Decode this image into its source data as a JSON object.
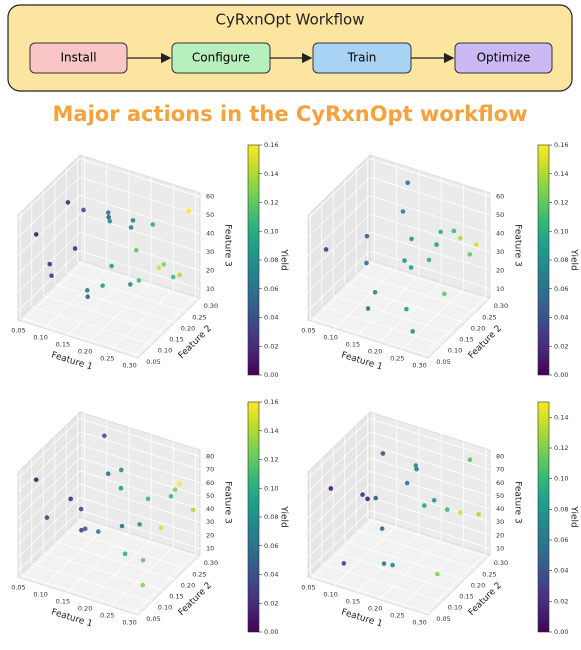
{
  "workflow": {
    "title": "CyRxnOpt Workflow",
    "steps": [
      "Install",
      "Configure",
      "Train",
      "Optimize"
    ]
  },
  "heading": "Major actions in the CyRxnOpt workflow",
  "chart_data": [
    {
      "type": "scatter3d",
      "xlabel": "Feature 1",
      "ylabel": "Feature 2",
      "zlabel": "Feature 3",
      "colorbar_label": "Yield",
      "xlim": [
        0.04,
        0.31
      ],
      "ylim": [
        0.04,
        0.31
      ],
      "zlim": [
        5,
        62
      ],
      "clim": [
        0,
        0.16
      ],
      "xticks": [
        0.05,
        {
          "value": 0.1,
          "label": "0.10"
        },
        0.15,
        {
          "value": 0.2,
          "label": "0.20"
        },
        0.25,
        {
          "value": 0.3,
          "label": "0.30"
        }
      ],
      "yticks": [
        0.05,
        {
          "value": 0.1,
          "label": "0.10"
        },
        0.15,
        {
          "value": 0.2,
          "label": "0.20"
        },
        0.25,
        {
          "value": 0.3,
          "label": "0.30"
        }
      ],
      "zticks": [
        10,
        20,
        30,
        40,
        50,
        60
      ],
      "cticks": [
        {
          "value": 0,
          "label": "0.00"
        },
        0.02,
        0.04,
        0.06,
        0.08,
        {
          "value": 0.1,
          "label": "0.10"
        },
        0.12,
        0.14,
        0.16
      ],
      "x": [
        0.05,
        0.06,
        0.08,
        0.1,
        0.12,
        0.14,
        0.15,
        0.17,
        0.18,
        0.2,
        0.21,
        0.22,
        0.24,
        0.25,
        0.26,
        0.27,
        0.28,
        0.29,
        0.3,
        0.3,
        0.07,
        0.11,
        0.16,
        0.23
      ],
      "y": [
        0.1,
        0.25,
        0.18,
        0.07,
        0.28,
        0.15,
        0.22,
        0.09,
        0.27,
        0.13,
        0.2,
        0.06,
        0.24,
        0.16,
        0.29,
        0.11,
        0.21,
        0.26,
        0.15,
        0.28,
        0.12,
        0.19,
        0.3,
        0.08
      ],
      "z": [
        45,
        20,
        55,
        30,
        38,
        12,
        50,
        25,
        42,
        60,
        18,
        35,
        48,
        28,
        15,
        52,
        33,
        22,
        40,
        55,
        28,
        52,
        33,
        44
      ],
      "c": [
        0.01,
        0.02,
        0.02,
        0.03,
        0.05,
        0.05,
        0.06,
        0.07,
        0.07,
        0.08,
        0.08,
        0.09,
        0.1,
        0.11,
        0.11,
        0.12,
        0.13,
        0.14,
        0.15,
        0.16,
        0.02,
        0.04,
        0.07,
        0.09
      ]
    },
    {
      "type": "scatter3d",
      "xlabel": "Feature 1",
      "ylabel": "Feature 2",
      "zlabel": "Feature 3",
      "colorbar_label": "Yield",
      "xlim": [
        0.04,
        0.31
      ],
      "ylim": [
        0.04,
        0.31
      ],
      "zlim": [
        5,
        62
      ],
      "clim": [
        0,
        0.16
      ],
      "xticks": [
        0.05,
        {
          "value": 0.1,
          "label": "0.10"
        },
        0.15,
        {
          "value": 0.2,
          "label": "0.20"
        },
        0.25,
        {
          "value": 0.3,
          "label": "0.30"
        }
      ],
      "yticks": [
        0.05,
        {
          "value": 0.1,
          "label": "0.10"
        },
        0.15,
        {
          "value": 0.2,
          "label": "0.20"
        },
        0.25,
        {
          "value": 0.3,
          "label": "0.30"
        }
      ],
      "zticks": [
        10,
        20,
        30,
        40,
        50,
        60
      ],
      "cticks": [
        {
          "value": 0,
          "label": "0.00"
        },
        0.02,
        0.04,
        0.06,
        0.08,
        {
          "value": 0.1,
          "label": "0.10"
        },
        0.12,
        0.14,
        0.16
      ],
      "x": [
        0.06,
        0.09,
        0.12,
        0.14,
        0.16,
        0.18,
        0.19,
        0.2,
        0.22,
        0.23,
        0.24,
        0.26,
        0.27,
        0.28,
        0.29,
        0.3,
        0.3,
        0.13,
        0.17,
        0.21
      ],
      "y": [
        0.08,
        0.2,
        0.14,
        0.26,
        0.1,
        0.22,
        0.17,
        0.29,
        0.12,
        0.25,
        0.18,
        0.07,
        0.23,
        0.28,
        0.15,
        0.2,
        0.27,
        0.3,
        0.05,
        0.16
      ],
      "z": [
        40,
        35,
        30,
        45,
        22,
        38,
        33,
        28,
        15,
        42,
        36,
        12,
        48,
        30,
        25,
        50,
        38,
        55,
        20,
        32
      ],
      "c": [
        0.03,
        0.05,
        0.06,
        0.07,
        0.07,
        0.08,
        0.08,
        0.09,
        0.09,
        0.1,
        0.1,
        0.08,
        0.11,
        0.12,
        0.12,
        0.14,
        0.15,
        0.06,
        0.06,
        0.09
      ]
    },
    {
      "type": "scatter3d",
      "xlabel": "Feature 1",
      "ylabel": "Feature 2",
      "zlabel": "Feature 3",
      "colorbar_label": "Yield",
      "xlim": [
        0.04,
        0.31
      ],
      "ylim": [
        0.04,
        0.31
      ],
      "zlim": [
        5,
        85
      ],
      "clim": [
        0,
        0.16
      ],
      "xticks": [
        0.05,
        {
          "value": 0.1,
          "label": "0.10"
        },
        0.15,
        {
          "value": 0.2,
          "label": "0.20"
        },
        0.25,
        {
          "value": 0.3,
          "label": "0.30"
        }
      ],
      "yticks": [
        0.05,
        {
          "value": 0.1,
          "label": "0.10"
        },
        0.15,
        {
          "value": 0.2,
          "label": "0.20"
        },
        0.25,
        {
          "value": 0.3,
          "label": "0.30"
        }
      ],
      "zticks": [
        10,
        20,
        30,
        40,
        50,
        60,
        70,
        80
      ],
      "cticks": [
        {
          "value": 0,
          "label": "0.00"
        },
        0.02,
        0.04,
        0.06,
        0.08,
        {
          "value": 0.1,
          "label": "0.10"
        },
        0.12,
        0.14,
        0.16
      ],
      "x": [
        0.05,
        0.05,
        0.1,
        0.1,
        0.1,
        0.15,
        0.15,
        0.15,
        0.2,
        0.2,
        0.2,
        0.25,
        0.25,
        0.25,
        0.3,
        0.3,
        0.3,
        0.3,
        0.28,
        0.28,
        0.22,
        0.12
      ],
      "y": [
        0.1,
        0.25,
        0.05,
        0.2,
        0.3,
        0.12,
        0.22,
        0.28,
        0.08,
        0.18,
        0.26,
        0.1,
        0.2,
        0.3,
        0.08,
        0.16,
        0.24,
        0.3,
        0.12,
        0.26,
        0.14,
        0.16
      ],
      "z": [
        70,
        30,
        55,
        20,
        75,
        40,
        65,
        15,
        50,
        80,
        25,
        35,
        60,
        45,
        20,
        50,
        70,
        40,
        30,
        60,
        75,
        45
      ],
      "c": [
        0.01,
        0.02,
        0.03,
        0.03,
        0.04,
        0.05,
        0.06,
        0.06,
        0.07,
        0.08,
        0.08,
        0.1,
        0.11,
        0.11,
        0.13,
        0.15,
        0.16,
        0.14,
        0.12,
        0.13,
        0.09,
        0.04
      ]
    },
    {
      "type": "scatter3d",
      "xlabel": "Feature 1",
      "ylabel": "Feature 2",
      "zlabel": "Feature 3",
      "colorbar_label": "Yield",
      "xlim": [
        0.04,
        0.31
      ],
      "ylim": [
        0.04,
        0.31
      ],
      "zlim": [
        5,
        85
      ],
      "clim": [
        0,
        0.15
      ],
      "xticks": [
        0.05,
        {
          "value": 0.1,
          "label": "0.10"
        },
        0.15,
        {
          "value": 0.2,
          "label": "0.20"
        },
        0.25,
        {
          "value": 0.3,
          "label": "0.30"
        }
      ],
      "yticks": [
        0.05,
        {
          "value": 0.1,
          "label": "0.10"
        },
        0.15,
        {
          "value": 0.2,
          "label": "0.20"
        },
        0.25,
        {
          "value": 0.3,
          "label": "0.30"
        }
      ],
      "zticks": [
        10,
        20,
        30,
        40,
        50,
        60,
        70,
        80
      ],
      "cticks": [
        {
          "value": 0,
          "label": "0.00"
        },
        0.02,
        0.04,
        0.06,
        0.08,
        {
          "value": 0.1,
          "label": "0.10"
        },
        0.12,
        0.14
      ],
      "x": [
        0.05,
        0.05,
        0.08,
        0.1,
        0.1,
        0.15,
        0.15,
        0.18,
        0.2,
        0.2,
        0.22,
        0.25,
        0.25,
        0.27,
        0.3,
        0.3,
        0.3,
        0.12,
        0.17
      ],
      "y": [
        0.12,
        0.28,
        0.2,
        0.08,
        0.25,
        0.15,
        0.3,
        0.1,
        0.2,
        0.28,
        0.06,
        0.14,
        0.24,
        0.3,
        0.1,
        0.2,
        0.28,
        0.18,
        0.22
      ],
      "z": [
        60,
        25,
        45,
        15,
        70,
        35,
        55,
        20,
        80,
        40,
        30,
        65,
        45,
        75,
        25,
        55,
        40,
        50,
        60
      ],
      "c": [
        0.01,
        0.01,
        0.02,
        0.03,
        0.04,
        0.05,
        0.06,
        0.06,
        0.07,
        0.08,
        0.07,
        0.09,
        0.1,
        0.11,
        0.12,
        0.14,
        0.13,
        0.04,
        0.06
      ]
    }
  ]
}
